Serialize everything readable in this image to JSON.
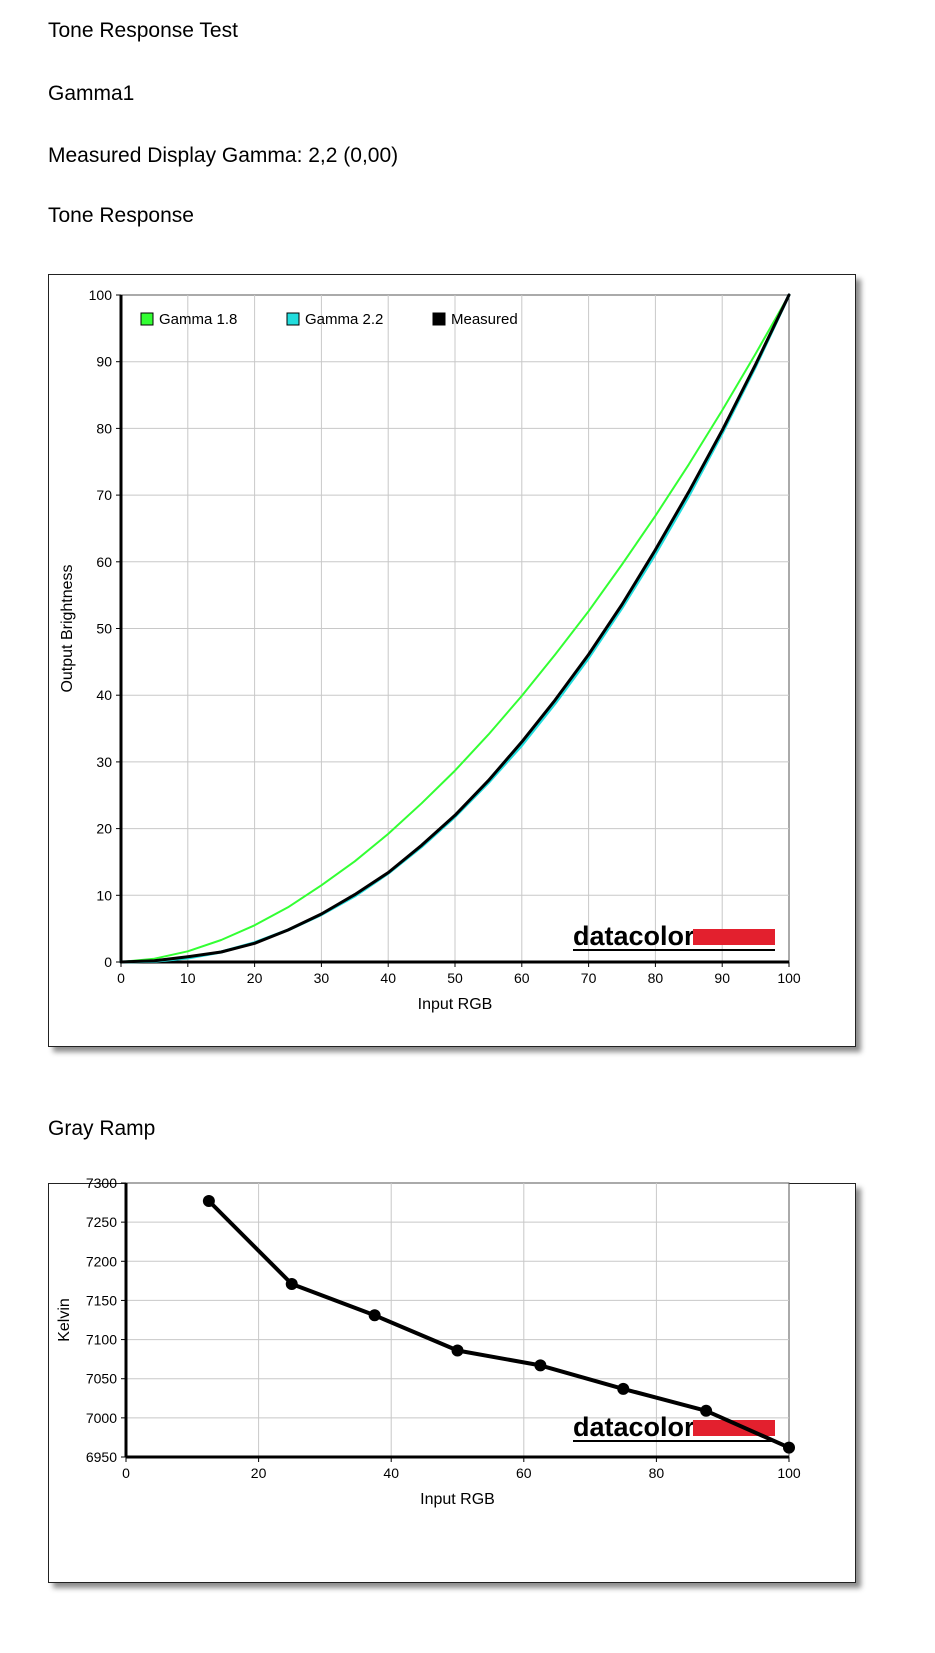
{
  "page": {
    "title": "Tone Response Test",
    "profile_name": "Gamma1",
    "measured_gamma": "Measured Display Gamma: 2,2 (0,00)",
    "section_tone": "Tone Response",
    "section_gray": "Gray Ramp",
    "logo_text": "datacolor"
  },
  "colors": {
    "gamma18": "#33ff33",
    "gamma22": "#22dddd",
    "measured": "#000000",
    "logo_red": "#e3202e",
    "grid": "#c8c8c8"
  },
  "chart_data": [
    {
      "type": "line",
      "title": "Tone Response",
      "xlabel": "Input RGB",
      "ylabel": "Output Brightness",
      "xlim": [
        0,
        100
      ],
      "ylim": [
        0,
        100
      ],
      "x_ticks": [
        "0",
        "10",
        "20",
        "30",
        "40",
        "50",
        "60",
        "70",
        "80",
        "90",
        "100"
      ],
      "y_ticks": [
        "0",
        "10",
        "20",
        "30",
        "40",
        "50",
        "60",
        "70",
        "80",
        "90",
        "100"
      ],
      "grid": true,
      "legend_position": "top-left",
      "x": [
        0,
        5,
        10,
        15,
        20,
        25,
        30,
        35,
        40,
        45,
        50,
        55,
        60,
        65,
        70,
        75,
        80,
        85,
        90,
        95,
        100
      ],
      "series": [
        {
          "name": "Gamma 1.8",
          "color": "#33ff33",
          "values": [
            0,
            0.5,
            1.6,
            3.3,
            5.5,
            8.2,
            11.5,
            15.1,
            19.2,
            23.8,
            28.7,
            34.1,
            39.9,
            46.1,
            52.6,
            59.6,
            66.9,
            74.6,
            82.7,
            91.2,
            100
          ]
        },
        {
          "name": "Gamma 2.2",
          "color": "#22dddd",
          "values": [
            0,
            0.1,
            0.6,
            1.5,
            2.9,
            4.8,
            7.1,
            9.9,
            13.3,
            17.3,
            21.8,
            26.9,
            32.5,
            38.8,
            45.6,
            53.1,
            61.2,
            69.9,
            79.3,
            89.3,
            100
          ]
        },
        {
          "name": "Measured",
          "color": "#000000",
          "values": [
            0,
            0.2,
            0.8,
            1.5,
            2.8,
            4.8,
            7.2,
            10.1,
            13.4,
            17.5,
            22.0,
            27.2,
            33.0,
            39.3,
            46.1,
            53.6,
            61.8,
            70.5,
            79.7,
            89.6,
            100
          ]
        }
      ]
    },
    {
      "type": "line",
      "title": "Gray Ramp",
      "xlabel": "Input RGB",
      "ylabel": "Kelvin",
      "xlim": [
        0,
        100
      ],
      "ylim": [
        6950,
        7300
      ],
      "x_ticks": [
        "0",
        "20",
        "40",
        "60",
        "80",
        "100"
      ],
      "y_ticks": [
        "6950",
        "7000",
        "7050",
        "7100",
        "7150",
        "7200",
        "7250",
        "7300"
      ],
      "grid": true,
      "series": [
        {
          "name": "",
          "color": "#000000",
          "x": [
            12.5,
            25,
            37.5,
            50,
            62.5,
            75,
            87.5,
            100
          ],
          "values": [
            7277,
            7171,
            7131,
            7086,
            7067,
            7037,
            7009,
            6962
          ]
        }
      ]
    }
  ]
}
